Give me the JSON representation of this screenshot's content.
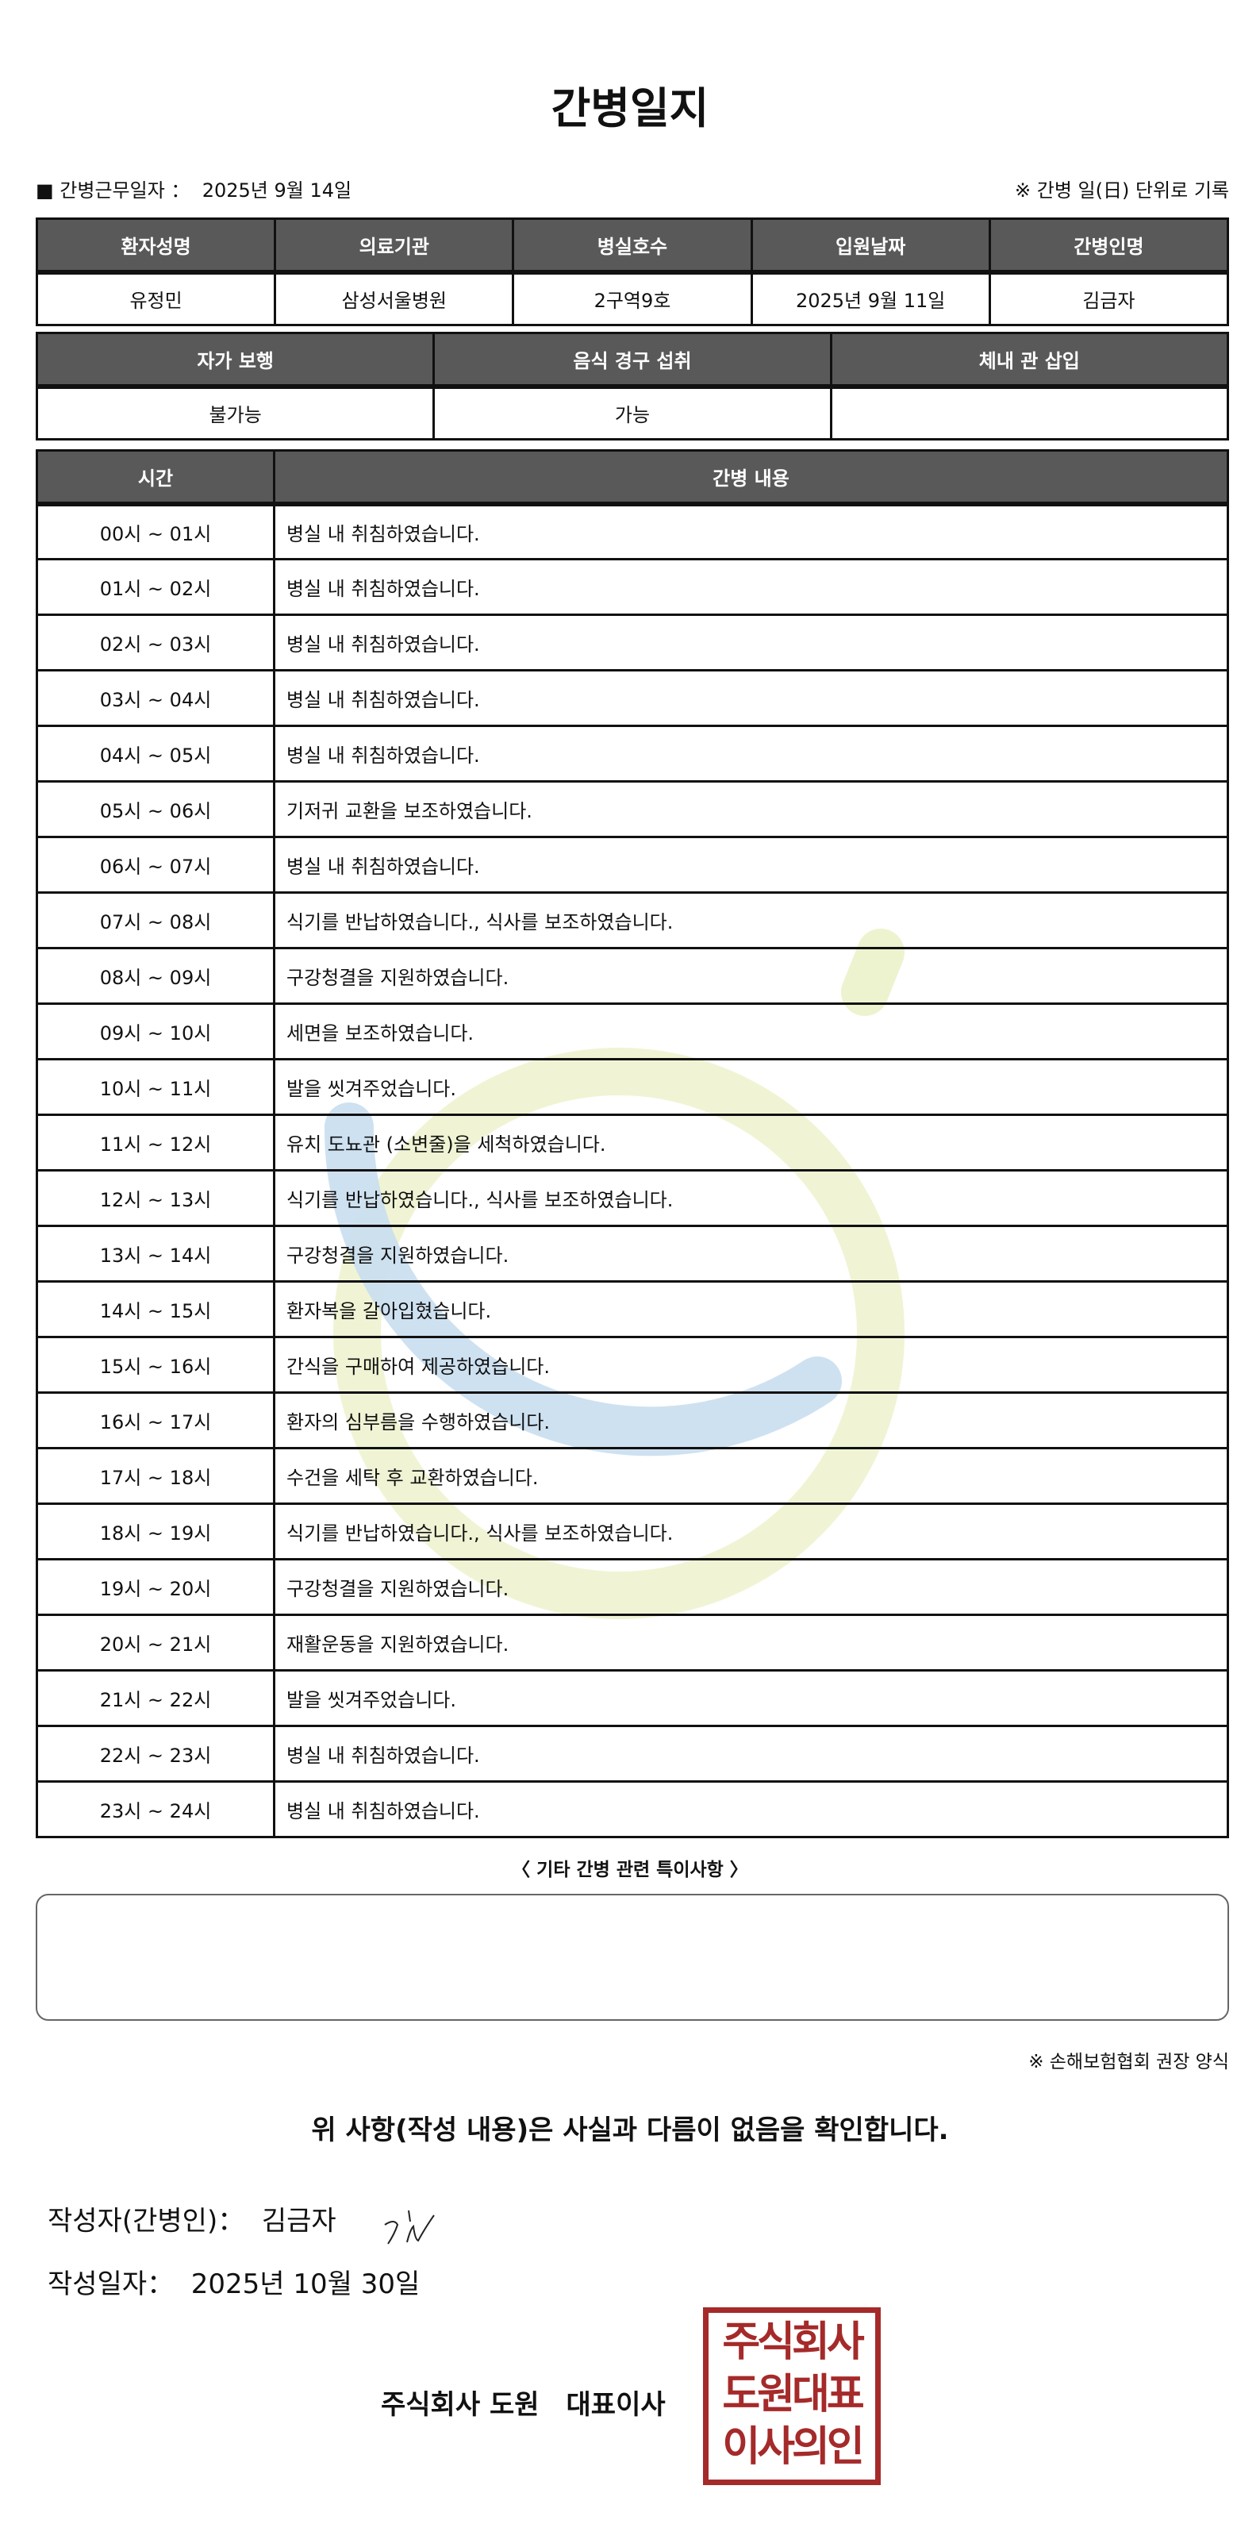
{
  "title": "간병일지",
  "work_date_label": "■ 간병근무일자 ：",
  "work_date": "2025년 9월 14일",
  "record_note": "※ 간병 일(日) 단위로 기록",
  "patient_table": {
    "headers": [
      "환자성명",
      "의료기관",
      "병실호수",
      "입원날짜",
      "간병인명"
    ],
    "values": [
      "유정민",
      "삼성서울병원",
      "2구역9호",
      "2025년 9월 11일",
      "김금자"
    ]
  },
  "status_table": {
    "headers": [
      "자가 보행",
      "음식 경구 섭취",
      "체내 관 삽입"
    ],
    "values": [
      "불가능",
      "가능",
      ""
    ]
  },
  "log_table": {
    "headers": [
      "시간",
      "간병 내용"
    ],
    "rows": [
      [
        "00시 ~ 01시",
        "병실 내 취침하였습니다."
      ],
      [
        "01시 ~ 02시",
        "병실 내 취침하였습니다."
      ],
      [
        "02시 ~ 03시",
        "병실 내 취침하였습니다."
      ],
      [
        "03시 ~ 04시",
        "병실 내 취침하였습니다."
      ],
      [
        "04시 ~ 05시",
        "병실 내 취침하였습니다."
      ],
      [
        "05시 ~ 06시",
        "기저귀 교환을 보조하였습니다."
      ],
      [
        "06시 ~ 07시",
        "병실 내 취침하였습니다."
      ],
      [
        "07시 ~ 08시",
        "식기를 반납하였습니다., 식사를 보조하였습니다."
      ],
      [
        "08시 ~ 09시",
        "구강청결을 지원하였습니다."
      ],
      [
        "09시 ~ 10시",
        "세면을 보조하였습니다."
      ],
      [
        "10시 ~ 11시",
        "발을 씻겨주었습니다."
      ],
      [
        "11시 ~ 12시",
        "유치 도뇨관 (소변줄)을 세척하였습니다."
      ],
      [
        "12시 ~ 13시",
        "식기를 반납하였습니다., 식사를 보조하였습니다."
      ],
      [
        "13시 ~ 14시",
        "구강청결을 지원하였습니다."
      ],
      [
        "14시 ~ 15시",
        "환자복을 갈아입혔습니다."
      ],
      [
        "15시 ~ 16시",
        "간식을 구매하여 제공하였습니다."
      ],
      [
        "16시 ~ 17시",
        "환자의 심부름을 수행하였습니다."
      ],
      [
        "17시 ~ 18시",
        "수건을 세탁 후 교환하였습니다."
      ],
      [
        "18시 ~ 19시",
        "식기를 반납하였습니다., 식사를 보조하였습니다."
      ],
      [
        "19시 ~ 20시",
        "구강청결을 지원하였습니다."
      ],
      [
        "20시 ~ 21시",
        "재활운동을 지원하였습니다."
      ],
      [
        "21시 ~ 22시",
        "발을 씻겨주었습니다."
      ],
      [
        "22시 ~ 23시",
        "병실 내 취침하였습니다."
      ],
      [
        "23시 ~ 24시",
        "병실 내 취침하였습니다."
      ]
    ]
  },
  "notes_label": "〈 기타 간병 관련 특이사항 〉",
  "notes_value": "",
  "form_note": "※ 손해보험협회 권장 양식",
  "confirm_text": "위 사항(작성 내용)은 사실과 다름이 없음을 확인합니다.",
  "writer_label": "작성자(간병인)：",
  "writer_name": "김금자",
  "write_date_label": "작성일자：",
  "write_date": "2025년 10월 30일",
  "company_line": "주식회사 도원　대표이사",
  "stamp_text": "주식회사 도원대표 이사의인",
  "colors": {
    "header_bg": "#595959",
    "stamp": "#a52a2a",
    "watermark_blue": "#c9def0",
    "watermark_green": "#eef3cf"
  }
}
